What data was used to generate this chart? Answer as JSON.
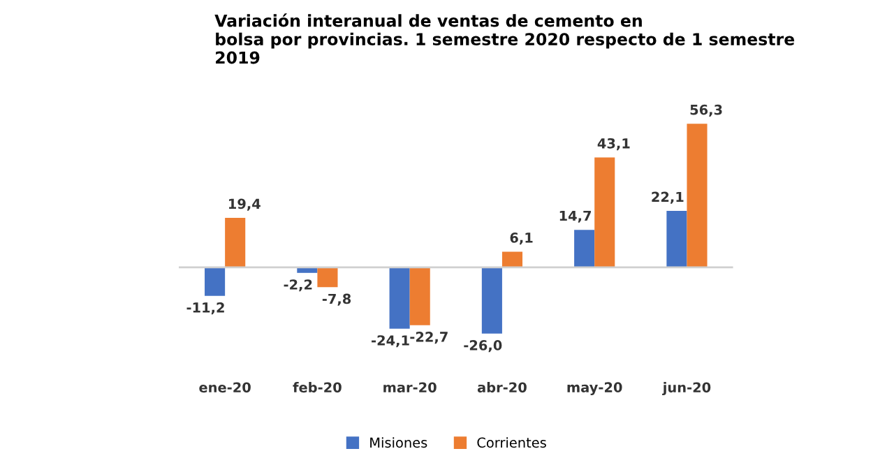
{
  "chart_data": {
    "type": "bar",
    "title": "Variación interanual de ventas de cemento en\nbolsa por provincias. 1 semestre 2020 respecto de 1 semestre\n2019",
    "categories": [
      "ene-20",
      "feb-20",
      "mar-20",
      "abr-20",
      "may-20",
      "jun-20"
    ],
    "series": [
      {
        "name": "Misiones",
        "color": "#4472c4",
        "values": [
          -11.2,
          -2.2,
          -24.1,
          -26.0,
          14.7,
          22.1
        ],
        "value_labels": [
          "-11,2",
          "-2,2",
          "-24,1",
          "-26,0",
          "14,7",
          "22,1"
        ]
      },
      {
        "name": "Corrientes",
        "color": "#ed7d31",
        "values": [
          19.4,
          -7.8,
          -22.7,
          6.1,
          43.1,
          56.3
        ],
        "value_labels": [
          "19,4",
          "-7,8",
          "-22,7",
          "6,1",
          "43,1",
          "56,3"
        ]
      }
    ],
    "legend": "bottom"
  }
}
